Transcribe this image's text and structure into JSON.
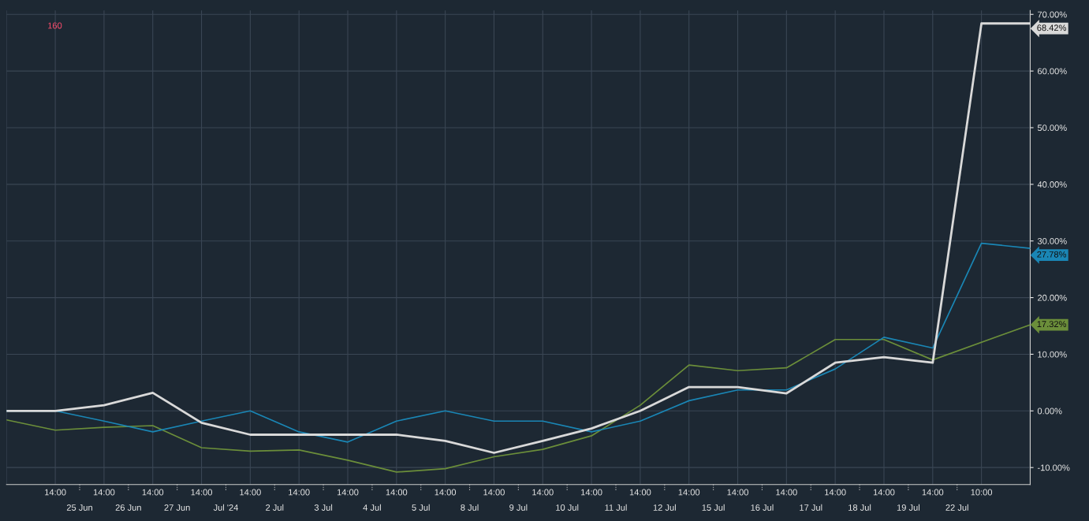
{
  "chart_data": {
    "type": "line",
    "categories": [
      null,
      "14:00",
      "14:00",
      "14:00",
      "14:00",
      "14:00",
      "14:00",
      "14:00",
      "14:00",
      "14:00",
      "14:00",
      "14:00",
      "14:00",
      "14:00",
      "14:00",
      "14:00",
      "14:00",
      "14:00",
      "14:00",
      "14:00",
      "10:00",
      null
    ],
    "series": [
      {
        "color": "#d9d9d9",
        "values": [
          0,
          0,
          1.0,
          3.2,
          -2.1,
          -4.2,
          -4.2,
          -4.2,
          -4.2,
          -5.3,
          -7.4,
          -5.3,
          -3.1,
          0,
          4.2,
          4.2,
          3.1,
          8.5,
          9.5,
          8.5,
          68.4,
          68.4
        ]
      },
      {
        "color": "#1a86b5",
        "values": [
          0,
          0,
          -1.8,
          -3.7,
          -1.8,
          0,
          -3.7,
          -5.5,
          -1.8,
          0,
          -1.8,
          -1.8,
          -3.7,
          -1.8,
          1.8,
          3.7,
          3.7,
          7.4,
          13.0,
          11.1,
          29.6,
          28.7
        ]
      },
      {
        "color": "#6b8e3a",
        "values": [
          -1.6,
          -3.4,
          -2.9,
          -2.6,
          -6.5,
          -7.1,
          -6.9,
          -8.7,
          -10.8,
          -10.2,
          -8.1,
          -6.8,
          -4.4,
          1.0,
          8.1,
          7.1,
          7.6,
          12.6,
          12.6,
          9.0,
          null,
          15.2
        ]
      }
    ],
    "ylim": [
      -13,
      70.7
    ],
    "yticks": [
      {
        "value": -10,
        "label": "-10.00%"
      },
      {
        "value": 0,
        "label": "0.00%"
      },
      {
        "value": 10,
        "label": "10.00%"
      },
      {
        "value": 20,
        "label": "20.00%"
      },
      {
        "value": 30,
        "label": "30.00%"
      },
      {
        "value": 40,
        "label": "40.00%"
      },
      {
        "value": 50,
        "label": "50.00%"
      },
      {
        "value": 60,
        "label": "60.00%"
      },
      {
        "value": 70,
        "label": "70.00%"
      }
    ],
    "annotations": [
      "68.42%",
      "27.78%",
      "17.32%",
      "25 Jun",
      "26 Jun",
      "27 Jun",
      "Jul '24",
      "2 Jul",
      "3 Jul",
      "4 Jul",
      "5 Jul",
      "8 Jul",
      "9 Jul",
      "10 Jul",
      "11 Jul",
      "12 Jul",
      "15 Jul",
      "16 Jul",
      "17 Jul",
      "18 Jul",
      "19 Jul",
      "22 Jul",
      "160"
    ],
    "grid": true,
    "marker": "none",
    "line_style": "solid"
  }
}
